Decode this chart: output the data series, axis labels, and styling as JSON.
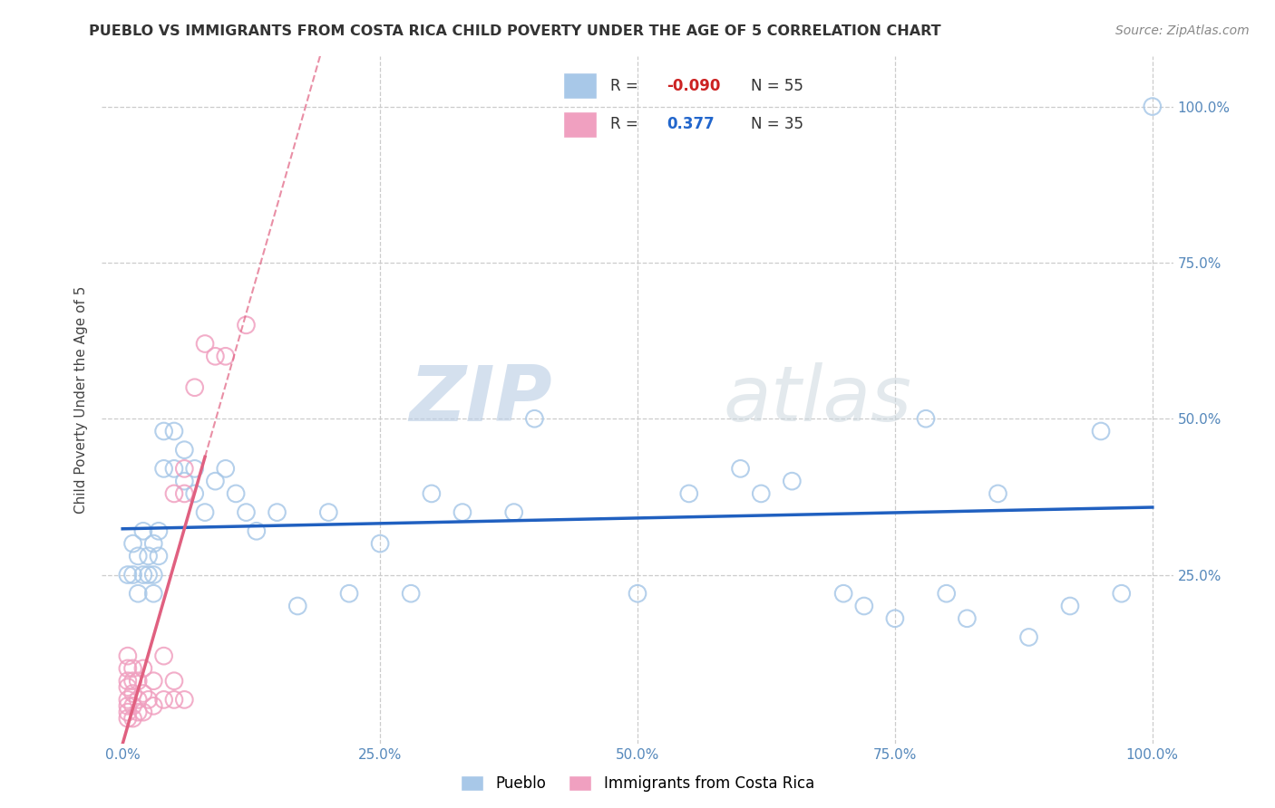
{
  "title": "PUEBLO VS IMMIGRANTS FROM COSTA RICA CHILD POVERTY UNDER THE AGE OF 5 CORRELATION CHART",
  "source": "Source: ZipAtlas.com",
  "ylabel": "Child Poverty Under the Age of 5",
  "xlim": [
    -0.02,
    1.02
  ],
  "ylim": [
    -0.02,
    1.08
  ],
  "xtick_vals": [
    0.0,
    0.25,
    0.5,
    0.75,
    1.0
  ],
  "ytick_vals": [
    0.25,
    0.5,
    0.75,
    1.0
  ],
  "pueblo_R": -0.09,
  "pueblo_N": 55,
  "cr_R": 0.377,
  "cr_N": 35,
  "pueblo_color": "#A8C8E8",
  "cr_color": "#F0A0C0",
  "pueblo_line_color": "#2060C0",
  "cr_line_color": "#E06080",
  "legend_label_pueblo": "Pueblo",
  "legend_label_cr": "Immigrants from Costa Rica",
  "pueblo_x": [
    0.005,
    0.01,
    0.01,
    0.015,
    0.015,
    0.02,
    0.02,
    0.025,
    0.025,
    0.03,
    0.03,
    0.03,
    0.035,
    0.035,
    0.04,
    0.04,
    0.05,
    0.05,
    0.06,
    0.06,
    0.07,
    0.07,
    0.08,
    0.09,
    0.1,
    0.11,
    0.12,
    0.13,
    0.15,
    0.17,
    0.2,
    0.22,
    0.25,
    0.28,
    0.3,
    0.33,
    0.38,
    0.4,
    0.5,
    0.55,
    0.6,
    0.62,
    0.65,
    0.7,
    0.72,
    0.75,
    0.78,
    0.8,
    0.82,
    0.85,
    0.88,
    0.92,
    0.95,
    0.97,
    1.0
  ],
  "pueblo_y": [
    0.25,
    0.25,
    0.3,
    0.22,
    0.28,
    0.25,
    0.32,
    0.25,
    0.28,
    0.22,
    0.25,
    0.3,
    0.28,
    0.32,
    0.42,
    0.48,
    0.42,
    0.48,
    0.4,
    0.45,
    0.38,
    0.42,
    0.35,
    0.4,
    0.42,
    0.38,
    0.35,
    0.32,
    0.35,
    0.2,
    0.35,
    0.22,
    0.3,
    0.22,
    0.38,
    0.35,
    0.35,
    0.5,
    0.22,
    0.38,
    0.42,
    0.38,
    0.4,
    0.22,
    0.2,
    0.18,
    0.5,
    0.22,
    0.18,
    0.38,
    0.15,
    0.2,
    0.48,
    0.22,
    1.0
  ],
  "cr_x": [
    0.005,
    0.005,
    0.005,
    0.005,
    0.005,
    0.005,
    0.005,
    0.005,
    0.01,
    0.01,
    0.01,
    0.01,
    0.01,
    0.015,
    0.015,
    0.015,
    0.02,
    0.02,
    0.02,
    0.025,
    0.03,
    0.03,
    0.04,
    0.04,
    0.05,
    0.05,
    0.05,
    0.06,
    0.06,
    0.06,
    0.07,
    0.08,
    0.09,
    0.1,
    0.12
  ],
  "cr_y": [
    0.02,
    0.03,
    0.04,
    0.05,
    0.07,
    0.08,
    0.1,
    0.12,
    0.02,
    0.04,
    0.06,
    0.08,
    0.1,
    0.03,
    0.05,
    0.08,
    0.03,
    0.06,
    0.1,
    0.05,
    0.04,
    0.08,
    0.05,
    0.12,
    0.38,
    0.05,
    0.08,
    0.05,
    0.38,
    0.42,
    0.55,
    0.62,
    0.6,
    0.6,
    0.65
  ],
  "watermark_zip": "ZIP",
  "watermark_atlas": "atlas",
  "background_color": "#FFFFFF",
  "grid_color": "#CCCCCC",
  "title_color": "#333333",
  "tick_color": "#5588BB",
  "source_color": "#888888"
}
